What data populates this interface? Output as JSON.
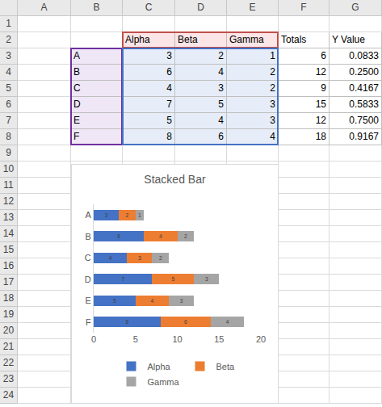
{
  "chart_data": {
    "type": "bar",
    "title": "Stacked Bar",
    "orientation": "horizontal",
    "stacked": true,
    "data_labels": true,
    "grid": false,
    "legend": "bottom",
    "categories": [
      "A",
      "B",
      "C",
      "D",
      "E",
      "F"
    ],
    "series": [
      {
        "name": "Alpha",
        "color": "#4472c4",
        "values": [
          3,
          6,
          4,
          7,
          5,
          8
        ]
      },
      {
        "name": "Beta",
        "color": "#ed7d31",
        "values": [
          2,
          4,
          3,
          5,
          4,
          6
        ]
      },
      {
        "name": "Gamma",
        "color": "#a5a5a5",
        "values": [
          1,
          2,
          2,
          3,
          3,
          4
        ]
      }
    ],
    "xlim": [
      0,
      20
    ],
    "xticks": [
      0,
      5,
      10,
      15,
      20
    ]
  },
  "sheet": {
    "columns": [
      "A",
      "B",
      "C",
      "D",
      "E",
      "F",
      "G"
    ],
    "rows": [
      1,
      2,
      3,
      4,
      5,
      6,
      7,
      8,
      9,
      10,
      11,
      12,
      13,
      14,
      15,
      16,
      17,
      18,
      19,
      20,
      21,
      22,
      23,
      24
    ]
  },
  "table": {
    "header": [
      "Alpha",
      "Beta",
      "Gamma",
      "Totals",
      "Y Value"
    ],
    "rows": [
      [
        "A",
        3,
        2,
        1,
        6,
        "0.0833"
      ],
      [
        "B",
        6,
        4,
        2,
        12,
        "0.2500"
      ],
      [
        "C",
        4,
        3,
        2,
        9,
        "0.4167"
      ],
      [
        "D",
        7,
        5,
        3,
        15,
        "0.5833"
      ],
      [
        "E",
        5,
        4,
        3,
        12,
        "0.7500"
      ],
      [
        "F",
        8,
        6,
        4,
        18,
        "0.9167"
      ]
    ]
  }
}
